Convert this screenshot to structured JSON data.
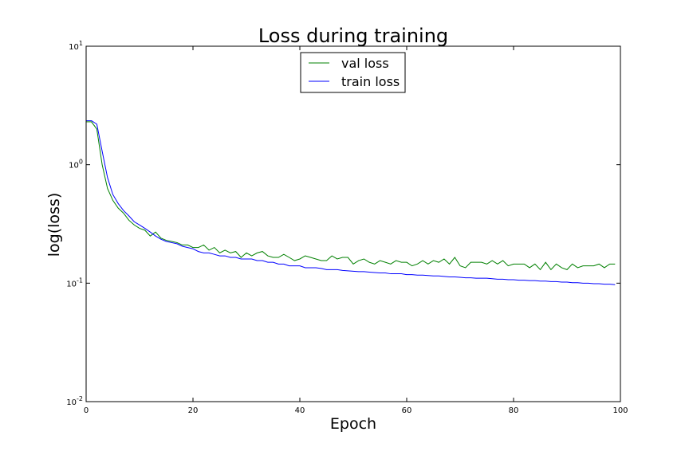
{
  "chart_data": {
    "type": "line",
    "title": "Loss during training",
    "xlabel": "Epoch",
    "ylabel": "log(loss)",
    "xlim": [
      0,
      100
    ],
    "ylim": [
      0.01,
      10
    ],
    "yscale": "log",
    "grid": false,
    "legend_position": "top-center",
    "x_ticks": [
      "0",
      "20",
      "40",
      "60",
      "80",
      "100"
    ],
    "y_ticks": [
      {
        "base": "10",
        "exp": "-2"
      },
      {
        "base": "10",
        "exp": "-1"
      },
      {
        "base": "10",
        "exp": "0"
      },
      {
        "base": "10",
        "exp": "1"
      }
    ],
    "x": [
      0,
      1,
      2,
      3,
      4,
      5,
      6,
      7,
      8,
      9,
      10,
      11,
      12,
      13,
      14,
      15,
      16,
      17,
      18,
      19,
      20,
      21,
      22,
      23,
      24,
      25,
      26,
      27,
      28,
      29,
      30,
      31,
      32,
      33,
      34,
      35,
      36,
      37,
      38,
      39,
      40,
      41,
      42,
      43,
      44,
      45,
      46,
      47,
      48,
      49,
      50,
      51,
      52,
      53,
      54,
      55,
      56,
      57,
      58,
      59,
      60,
      61,
      62,
      63,
      64,
      65,
      66,
      67,
      68,
      69,
      70,
      71,
      72,
      73,
      74,
      75,
      76,
      77,
      78,
      79,
      80,
      81,
      82,
      83,
      84,
      85,
      86,
      87,
      88,
      89,
      90,
      91,
      92,
      93,
      94,
      95,
      96,
      97,
      98,
      99
    ],
    "series": [
      {
        "name": "val loss",
        "color": "#008000",
        "values": [
          2.3,
          2.3,
          2.0,
          1.0,
          0.63,
          0.5,
          0.43,
          0.39,
          0.34,
          0.31,
          0.29,
          0.28,
          0.25,
          0.27,
          0.24,
          0.23,
          0.225,
          0.22,
          0.21,
          0.21,
          0.2,
          0.2,
          0.21,
          0.19,
          0.2,
          0.18,
          0.19,
          0.18,
          0.185,
          0.165,
          0.18,
          0.17,
          0.18,
          0.185,
          0.17,
          0.165,
          0.165,
          0.175,
          0.165,
          0.155,
          0.16,
          0.17,
          0.165,
          0.16,
          0.155,
          0.155,
          0.17,
          0.16,
          0.165,
          0.165,
          0.145,
          0.155,
          0.16,
          0.15,
          0.145,
          0.155,
          0.15,
          0.145,
          0.155,
          0.15,
          0.15,
          0.14,
          0.145,
          0.155,
          0.145,
          0.155,
          0.15,
          0.16,
          0.145,
          0.165,
          0.14,
          0.135,
          0.15,
          0.15,
          0.15,
          0.145,
          0.155,
          0.145,
          0.155,
          0.14,
          0.145,
          0.145,
          0.145,
          0.135,
          0.145,
          0.13,
          0.15,
          0.13,
          0.145,
          0.135,
          0.13,
          0.145,
          0.135,
          0.14,
          0.14,
          0.14,
          0.145,
          0.135,
          0.145,
          0.145
        ]
      },
      {
        "name": "train loss",
        "color": "#0000ff",
        "values": [
          2.35,
          2.35,
          2.2,
          1.3,
          0.78,
          0.56,
          0.47,
          0.41,
          0.37,
          0.33,
          0.31,
          0.29,
          0.27,
          0.25,
          0.235,
          0.225,
          0.22,
          0.215,
          0.205,
          0.2,
          0.195,
          0.185,
          0.18,
          0.18,
          0.175,
          0.17,
          0.17,
          0.165,
          0.165,
          0.16,
          0.16,
          0.16,
          0.155,
          0.155,
          0.15,
          0.15,
          0.145,
          0.145,
          0.14,
          0.14,
          0.14,
          0.135,
          0.135,
          0.135,
          0.133,
          0.13,
          0.13,
          0.13,
          0.128,
          0.127,
          0.126,
          0.125,
          0.125,
          0.124,
          0.123,
          0.122,
          0.122,
          0.12,
          0.12,
          0.12,
          0.118,
          0.118,
          0.117,
          0.117,
          0.116,
          0.115,
          0.115,
          0.114,
          0.113,
          0.113,
          0.112,
          0.111,
          0.111,
          0.11,
          0.11,
          0.11,
          0.109,
          0.108,
          0.108,
          0.107,
          0.107,
          0.106,
          0.106,
          0.105,
          0.105,
          0.104,
          0.104,
          0.103,
          0.103,
          0.102,
          0.102,
          0.101,
          0.101,
          0.1,
          0.1,
          0.099,
          0.099,
          0.098,
          0.098,
          0.097
        ]
      }
    ]
  }
}
